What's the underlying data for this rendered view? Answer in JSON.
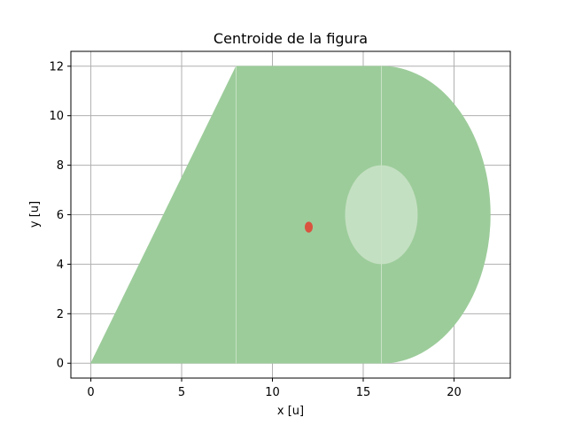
{
  "chart_data": {
    "type": "area",
    "title": "Centroide de la figura",
    "xlabel": "x [u]",
    "ylabel": "y [u]",
    "xlim": [
      -1.1,
      23.1
    ],
    "ylim": [
      -0.6,
      12.6
    ],
    "xticks": [
      0,
      5,
      10,
      15,
      20
    ],
    "yticks": [
      0,
      2,
      4,
      6,
      8,
      10,
      12
    ],
    "grid": true,
    "shapes": [
      {
        "kind": "polygon",
        "role": "triangle",
        "points": [
          [
            0,
            0
          ],
          [
            8,
            0
          ],
          [
            8,
            12
          ]
        ],
        "color": "#9ccc9a"
      },
      {
        "kind": "polygon",
        "role": "rectangle",
        "points": [
          [
            8,
            0
          ],
          [
            16,
            0
          ],
          [
            16,
            12
          ],
          [
            8,
            12
          ]
        ],
        "color": "#9ccc9a"
      },
      {
        "kind": "half-ellipse",
        "role": "semicircle",
        "cx": 16,
        "cy": 6,
        "rx": 6,
        "ry": 6,
        "color": "#9ccc9a"
      },
      {
        "kind": "ellipse",
        "role": "hole",
        "cx": 16,
        "cy": 6,
        "rx": 2,
        "ry": 2,
        "color": "#c4e0c2"
      }
    ],
    "centroid": {
      "x": 12.0,
      "y": 5.5,
      "rx": 0.22,
      "ry": 0.22,
      "color": "#d9533f"
    }
  }
}
